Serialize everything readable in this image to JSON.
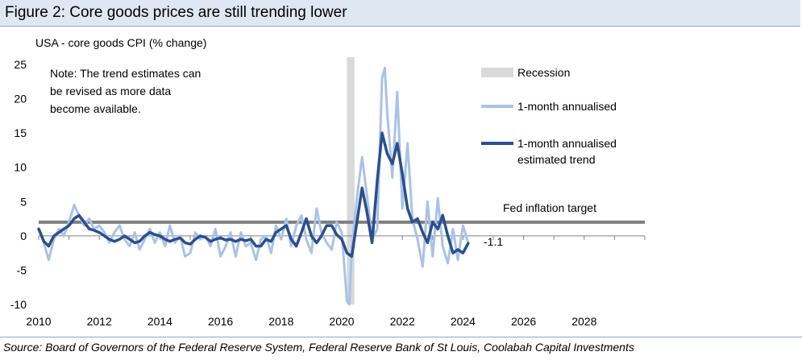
{
  "figure": {
    "title": "Figure 2: Core goods prices are still trending lower",
    "source": "Source: Board of Governors of the Federal Reserve System, Federal Reserve Bank of St Louis, Coolabah Capital Investments"
  },
  "chart_data": {
    "type": "line",
    "title": "Figure 2: Core goods prices are still trending lower",
    "ylabel": "USA - core  goods CPI (% change)",
    "xlabel": "",
    "xlim": [
      2010,
      2030
    ],
    "ylim": [
      -10,
      25
    ],
    "yticks": [
      -10,
      -5,
      0,
      5,
      10,
      15,
      20,
      25
    ],
    "xticks": [
      2010,
      2012,
      2014,
      2016,
      2018,
      2020,
      2022,
      2024,
      2026,
      2028
    ],
    "note": "Note: The trend estimates can be revised as more data become available.",
    "recession": {
      "label": "Recession",
      "start": 2020.17,
      "end": 2020.42
    },
    "target": {
      "label": "Fed inflation target",
      "value": 2
    },
    "last_value_label": "-1.1",
    "legend_position": "right",
    "series": [
      {
        "name": "1-month annualised",
        "color": "#a9c3e6",
        "x": [
          2010.0,
          2010.17,
          2010.33,
          2010.5,
          2010.67,
          2010.83,
          2011.0,
          2011.17,
          2011.33,
          2011.5,
          2011.67,
          2011.83,
          2012.0,
          2012.17,
          2012.33,
          2012.5,
          2012.67,
          2012.83,
          2013.0,
          2013.17,
          2013.33,
          2013.5,
          2013.67,
          2013.83,
          2014.0,
          2014.17,
          2014.33,
          2014.5,
          2014.67,
          2014.83,
          2015.0,
          2015.17,
          2015.33,
          2015.5,
          2015.67,
          2015.83,
          2016.0,
          2016.17,
          2016.33,
          2016.5,
          2016.67,
          2016.83,
          2017.0,
          2017.17,
          2017.33,
          2017.5,
          2017.67,
          2017.83,
          2018.0,
          2018.17,
          2018.33,
          2018.5,
          2018.67,
          2018.83,
          2019.0,
          2019.17,
          2019.33,
          2019.5,
          2019.67,
          2019.83,
          2020.0,
          2020.17,
          2020.25,
          2020.33,
          2020.5,
          2020.67,
          2020.83,
          2021.0,
          2021.17,
          2021.33,
          2021.42,
          2021.5,
          2021.67,
          2021.83,
          2022.0,
          2022.17,
          2022.33,
          2022.5,
          2022.67,
          2022.83,
          2023.0,
          2023.17,
          2023.33,
          2023.5,
          2023.67,
          2023.83,
          2024.0,
          2024.17
        ],
        "y": [
          1.0,
          -1.0,
          -3.5,
          -0.5,
          1.0,
          0.0,
          2.0,
          4.5,
          3.0,
          1.5,
          2.5,
          1.0,
          1.5,
          0.5,
          -1.0,
          0.5,
          1.5,
          -0.5,
          -1.5,
          0.5,
          -2.0,
          -0.5,
          1.0,
          -1.0,
          0.5,
          -1.5,
          1.5,
          -1.0,
          0.0,
          -3.0,
          -2.5,
          0.5,
          -0.5,
          0.0,
          -1.5,
          1.0,
          -3.0,
          -1.5,
          0.5,
          -3.0,
          0.5,
          -1.5,
          -1.0,
          -3.5,
          -0.5,
          0.0,
          -2.5,
          1.5,
          -0.5,
          2.5,
          -1.5,
          1.5,
          3.0,
          -0.5,
          -2.5,
          4.0,
          0.5,
          -1.0,
          -2.0,
          2.0,
          0.5,
          -9.5,
          -10.0,
          -2.0,
          5.5,
          11.5,
          6.0,
          -0.5,
          1.0,
          23.0,
          24.5,
          18.0,
          8.5,
          21.0,
          4.0,
          13.5,
          2.5,
          -0.5,
          -4.5,
          5.0,
          -3.0,
          5.5,
          -1.5,
          -4.0,
          1.0,
          -3.5,
          1.5,
          -1.0
        ]
      },
      {
        "name": "1-month annualised estimated trend",
        "color": "#2b4f8e",
        "x": [
          2010.0,
          2010.17,
          2010.33,
          2010.5,
          2010.67,
          2010.83,
          2011.0,
          2011.17,
          2011.33,
          2011.5,
          2011.67,
          2011.83,
          2012.0,
          2012.17,
          2012.33,
          2012.5,
          2012.67,
          2012.83,
          2013.0,
          2013.17,
          2013.33,
          2013.5,
          2013.67,
          2013.83,
          2014.0,
          2014.17,
          2014.33,
          2014.5,
          2014.67,
          2014.83,
          2015.0,
          2015.17,
          2015.33,
          2015.5,
          2015.67,
          2015.83,
          2016.0,
          2016.17,
          2016.33,
          2016.5,
          2016.67,
          2016.83,
          2017.0,
          2017.17,
          2017.33,
          2017.5,
          2017.67,
          2017.83,
          2018.0,
          2018.17,
          2018.33,
          2018.5,
          2018.67,
          2018.83,
          2019.0,
          2019.17,
          2019.33,
          2019.5,
          2019.67,
          2019.83,
          2020.0,
          2020.17,
          2020.33,
          2020.5,
          2020.67,
          2020.83,
          2021.0,
          2021.17,
          2021.33,
          2021.5,
          2021.67,
          2021.83,
          2022.0,
          2022.17,
          2022.33,
          2022.5,
          2022.67,
          2022.83,
          2023.0,
          2023.17,
          2023.33,
          2023.5,
          2023.67,
          2023.83,
          2024.0,
          2024.17
        ],
        "y": [
          1.0,
          -0.8,
          -1.5,
          0.0,
          0.5,
          1.0,
          1.5,
          2.5,
          3.0,
          2.0,
          1.0,
          0.8,
          0.5,
          0.0,
          -0.5,
          -0.8,
          -0.5,
          0.0,
          -0.5,
          -1.0,
          -0.8,
          0.0,
          0.5,
          0.2,
          0.0,
          -0.5,
          -0.8,
          -0.5,
          -0.3,
          -1.0,
          -1.2,
          -0.5,
          0.0,
          -0.2,
          -0.8,
          -0.5,
          -0.3,
          -0.6,
          -0.5,
          -0.8,
          -0.5,
          -0.7,
          -0.5,
          -1.5,
          -1.5,
          -0.5,
          -0.8,
          0.5,
          1.0,
          1.5,
          -0.5,
          -1.5,
          0.5,
          2.5,
          0.0,
          -1.0,
          0.0,
          1.5,
          1.5,
          0.2,
          -0.5,
          -2.5,
          -3.0,
          2.0,
          7.0,
          3.5,
          -1.0,
          8.0,
          15.0,
          12.0,
          10.5,
          13.5,
          9.0,
          4.0,
          2.0,
          2.5,
          0.5,
          -1.0,
          2.0,
          1.0,
          3.0,
          0.0,
          -2.5,
          -2.0,
          -2.5,
          -1.1
        ]
      }
    ],
    "legend": [
      {
        "label": "Recession",
        "kind": "box",
        "color": "#d9d9d9"
      },
      {
        "label": "1-month annualised",
        "kind": "line",
        "color": "#a9c3e6"
      },
      {
        "label": "1-month annualised estimated trend",
        "kind": "line",
        "color": "#2b4f8e"
      }
    ],
    "legend_lines": {
      "recession": [
        "Recession"
      ],
      "raw": [
        "1-month annualised"
      ],
      "trend": [
        "1-month annualised",
        "estimated trend"
      ]
    },
    "target_color": "#7f7f7f",
    "axis_color": "#808080"
  }
}
